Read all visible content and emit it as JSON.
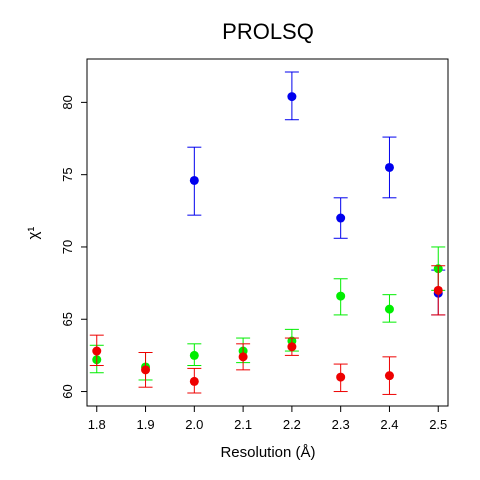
{
  "chart_data": {
    "type": "scatter",
    "title": "PROLSQ",
    "xlabel": "Resolution (Å)",
    "ylabel": "χ¹",
    "xlim": [
      1.78,
      2.52
    ],
    "ylim": [
      59.0,
      83.0
    ],
    "xticks": [
      1.8,
      1.9,
      2.0,
      2.1,
      2.2,
      2.3,
      2.4,
      2.5
    ],
    "xtick_labels": [
      "1.8",
      "1.9",
      "2.0",
      "2.1",
      "2.2",
      "2.3",
      "2.4",
      "2.5"
    ],
    "yticks": [
      60,
      65,
      70,
      75,
      80
    ],
    "ytick_labels": [
      "60",
      "65",
      "70",
      "75",
      "80"
    ],
    "grid": false,
    "series": [
      {
        "color": "#0000ee",
        "points": [
          {
            "x": 2.0,
            "y": 74.6,
            "lo": 72.2,
            "hi": 76.9
          },
          {
            "x": 2.2,
            "y": 80.4,
            "lo": 78.8,
            "hi": 82.1
          },
          {
            "x": 2.3,
            "y": 72.0,
            "lo": 70.6,
            "hi": 73.4
          },
          {
            "x": 2.4,
            "y": 75.5,
            "lo": 73.4,
            "hi": 77.6
          },
          {
            "x": 2.5,
            "y": 66.8,
            "lo": 65.3,
            "hi": 68.4
          }
        ]
      },
      {
        "color": "#00ee00",
        "points": [
          {
            "x": 1.8,
            "y": 62.2,
            "lo": 61.3,
            "hi": 63.2
          },
          {
            "x": 1.9,
            "y": 61.7,
            "lo": 60.8,
            "hi": 62.7
          },
          {
            "x": 2.0,
            "y": 62.5,
            "lo": 61.8,
            "hi": 63.3
          },
          {
            "x": 2.1,
            "y": 62.8,
            "lo": 62.0,
            "hi": 63.7
          },
          {
            "x": 2.2,
            "y": 63.5,
            "lo": 62.8,
            "hi": 64.3
          },
          {
            "x": 2.3,
            "y": 66.6,
            "lo": 65.3,
            "hi": 67.8
          },
          {
            "x": 2.4,
            "y": 65.7,
            "lo": 64.8,
            "hi": 66.7
          },
          {
            "x": 2.5,
            "y": 68.5,
            "lo": 67.0,
            "hi": 70.0
          }
        ]
      },
      {
        "color": "#ee0000",
        "points": [
          {
            "x": 1.8,
            "y": 62.8,
            "lo": 61.8,
            "hi": 63.9
          },
          {
            "x": 1.9,
            "y": 61.5,
            "lo": 60.3,
            "hi": 62.7
          },
          {
            "x": 2.0,
            "y": 60.7,
            "lo": 59.9,
            "hi": 61.6
          },
          {
            "x": 2.1,
            "y": 62.4,
            "lo": 61.5,
            "hi": 63.3
          },
          {
            "x": 2.2,
            "y": 63.1,
            "lo": 62.5,
            "hi": 63.7
          },
          {
            "x": 2.3,
            "y": 61.0,
            "lo": 60.0,
            "hi": 61.9
          },
          {
            "x": 2.4,
            "y": 61.1,
            "lo": 59.8,
            "hi": 62.4
          },
          {
            "x": 2.5,
            "y": 67.0,
            "lo": 65.3,
            "hi": 68.7
          }
        ]
      }
    ]
  }
}
